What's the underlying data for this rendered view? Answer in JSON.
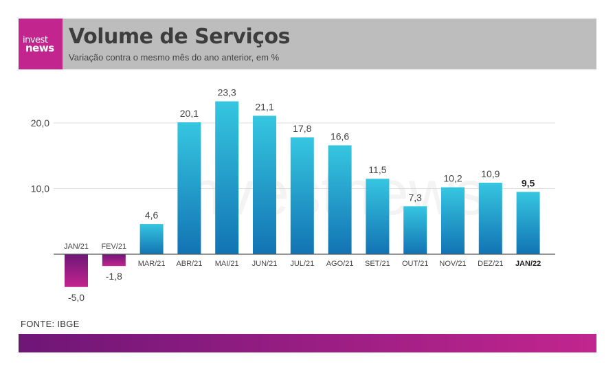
{
  "header": {
    "logo_line1": "invest",
    "logo_line2": "news",
    "title": "Volume de Serviços",
    "subtitle": "Variação contra o mesmo mês do ano anterior, em %"
  },
  "watermark": "investnews",
  "source": "FONTE: IBGE",
  "colors": {
    "header_bg": "#bdbdbd",
    "brand": "#c2258e",
    "positive_top": "#36c6e0",
    "positive_bottom": "#1273b3",
    "negative_top": "#6e1677",
    "negative_bottom": "#c2258e",
    "footer_left": "#6e1677",
    "footer_right": "#c2258e"
  },
  "chart_data": {
    "type": "bar",
    "categories": [
      "JAN/21",
      "FEV/21",
      "MAR/21",
      "ABR/21",
      "MAI/21",
      "JUN/21",
      "JUL/21",
      "AGO/21",
      "SET/21",
      "OUT/21",
      "NOV/21",
      "DEZ/21",
      "JAN/22"
    ],
    "values": [
      -5.0,
      -1.8,
      4.6,
      20.1,
      23.3,
      21.1,
      17.8,
      16.6,
      11.5,
      7.3,
      10.2,
      10.9,
      9.5
    ],
    "value_labels": [
      "-5,0",
      "-1,8",
      "4,6",
      "20,1",
      "23,3",
      "21,1",
      "17,8",
      "16,6",
      "11,5",
      "7,3",
      "10,2",
      "10,9",
      "9,5"
    ],
    "highlight_index": 12,
    "yticks": [
      10.0,
      20.0
    ],
    "ytick_labels": [
      "10,0",
      "20,0"
    ],
    "ylim": [
      -5.5,
      24.5
    ],
    "grid": true,
    "title": "Volume de Serviços",
    "xlabel": "",
    "ylabel": ""
  }
}
